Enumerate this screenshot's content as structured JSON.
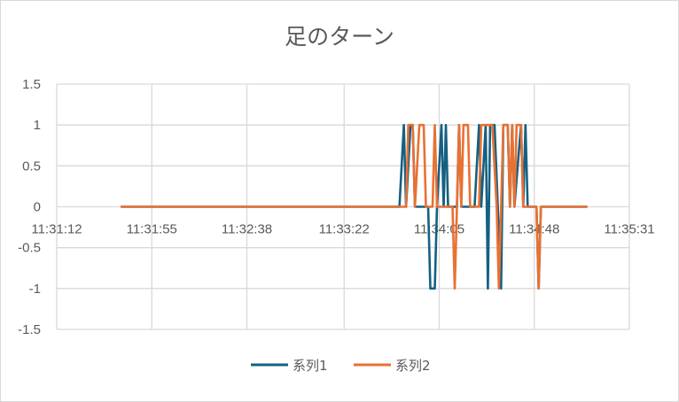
{
  "chart_data": {
    "type": "line",
    "title": "足のターン",
    "xlabel": "",
    "ylabel": "",
    "x_ticks": [
      "11:31:12",
      "11:31:55",
      "11:32:38",
      "11:33:22",
      "11:34:05",
      "11:34:48",
      "11:35:31"
    ],
    "y_ticks": [
      "-1.5",
      "-1",
      "-0.5",
      "0",
      "0.5",
      "1",
      "1.5"
    ],
    "ylim": [
      -1.5,
      1.5
    ],
    "xlim": [
      "11:31:12",
      "11:35:31"
    ],
    "grid": true,
    "legend_position": "bottom",
    "series": [
      {
        "name": "系列1",
        "color": "#156082",
        "points": [
          [
            "11:31:41",
            0
          ],
          [
            "11:33:47",
            0
          ],
          [
            "11:33:49",
            1
          ],
          [
            "11:33:50",
            0
          ],
          [
            "11:33:52",
            1
          ],
          [
            "11:33:53",
            1
          ],
          [
            "11:33:54",
            0
          ],
          [
            "11:34:00",
            0
          ],
          [
            "11:34:01",
            -1
          ],
          [
            "11:34:03",
            -1
          ],
          [
            "11:34:04",
            0
          ],
          [
            "11:34:06",
            1
          ],
          [
            "11:34:07",
            0
          ],
          [
            "11:34:08",
            1
          ],
          [
            "11:34:09",
            0
          ],
          [
            "11:34:13",
            0
          ],
          [
            "11:34:14",
            1
          ],
          [
            "11:34:15",
            0
          ],
          [
            "11:34:21",
            0
          ],
          [
            "11:34:23",
            1
          ],
          [
            "11:34:24",
            0
          ],
          [
            "11:34:26",
            1
          ],
          [
            "11:34:27",
            -1
          ],
          [
            "11:34:28",
            1
          ],
          [
            "11:34:30",
            1
          ],
          [
            "11:34:33",
            -1
          ],
          [
            "11:34:34",
            1
          ],
          [
            "11:34:36",
            1
          ],
          [
            "11:34:37",
            0
          ],
          [
            "11:34:38",
            1
          ],
          [
            "11:34:39",
            0
          ],
          [
            "11:34:42",
            1
          ],
          [
            "11:34:43",
            0
          ],
          [
            "11:34:44",
            1
          ],
          [
            "11:34:45",
            0
          ],
          [
            "11:34:49",
            0
          ],
          [
            "11:34:50",
            -1
          ],
          [
            "11:34:51",
            0
          ],
          [
            "11:35:12",
            0
          ]
        ]
      },
      {
        "name": "系列2",
        "color": "#E97132",
        "points": [
          [
            "11:31:41",
            0
          ],
          [
            "11:33:50",
            0
          ],
          [
            "11:33:51",
            1
          ],
          [
            "11:33:53",
            1
          ],
          [
            "11:33:54",
            0
          ],
          [
            "11:33:56",
            1
          ],
          [
            "11:33:58",
            1
          ],
          [
            "11:33:59",
            0
          ],
          [
            "11:34:02",
            0
          ],
          [
            "11:34:03",
            1
          ],
          [
            "11:34:04",
            0
          ],
          [
            "11:34:11",
            0
          ],
          [
            "11:34:12",
            -1
          ],
          [
            "11:34:13",
            0
          ],
          [
            "11:34:14",
            1
          ],
          [
            "11:34:15",
            0
          ],
          [
            "11:34:16",
            1
          ],
          [
            "11:34:18",
            1
          ],
          [
            "11:34:19",
            0
          ],
          [
            "11:34:23",
            0
          ],
          [
            "11:34:24",
            1
          ],
          [
            "11:34:29",
            1
          ],
          [
            "11:34:31",
            0
          ],
          [
            "11:34:32",
            -1
          ],
          [
            "11:34:33",
            0
          ],
          [
            "11:34:34",
            1
          ],
          [
            "11:34:36",
            1
          ],
          [
            "11:34:37",
            0
          ],
          [
            "11:34:38",
            1
          ],
          [
            "11:34:39",
            0
          ],
          [
            "11:34:40",
            1
          ],
          [
            "11:34:42",
            1
          ],
          [
            "11:34:43",
            0
          ],
          [
            "11:34:49",
            0
          ],
          [
            "11:34:50",
            -1
          ],
          [
            "11:34:51",
            0
          ],
          [
            "11:35:12",
            0
          ]
        ]
      }
    ]
  }
}
